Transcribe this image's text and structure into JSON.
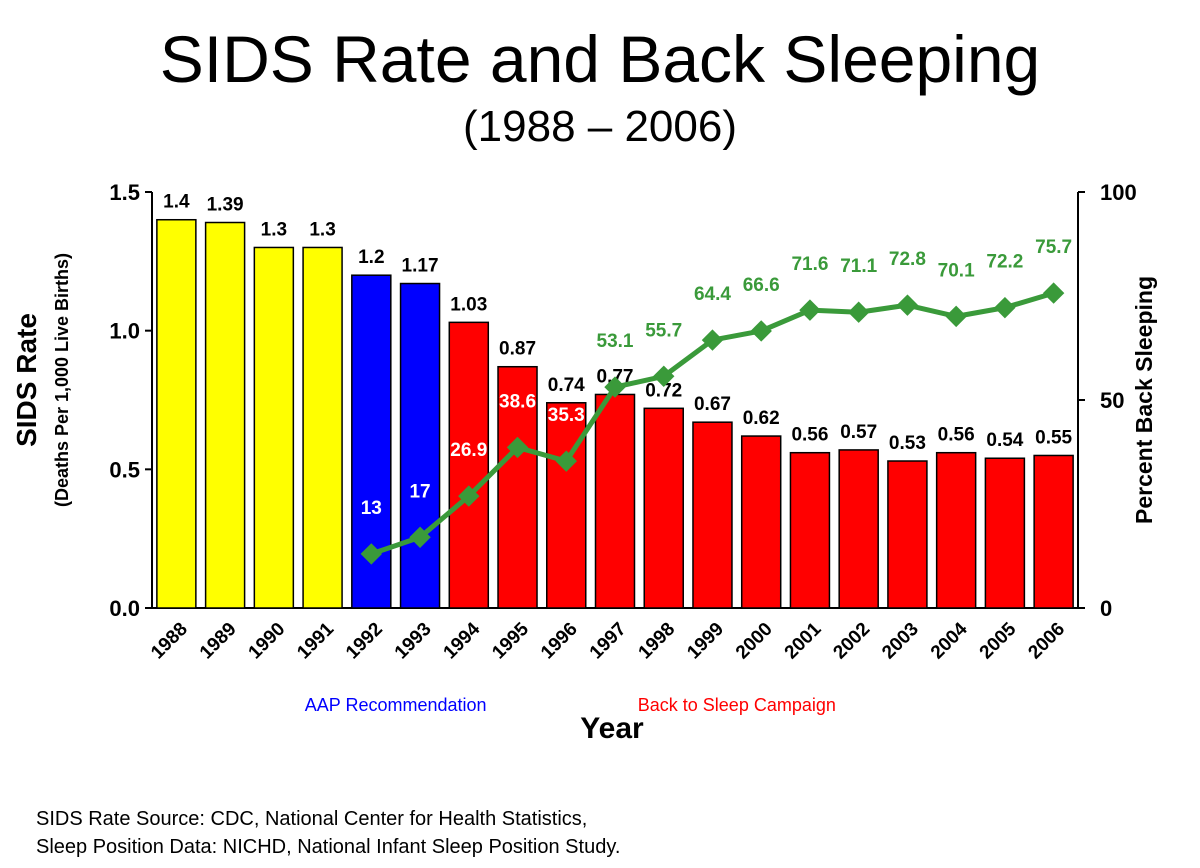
{
  "title": "SIDS Rate and Back Sleeping",
  "subtitle": "(1988 – 2006)",
  "chart_data": {
    "type": "bar",
    "categories": [
      "1988",
      "1989",
      "1990",
      "1991",
      "1992",
      "1993",
      "1994",
      "1995",
      "1996",
      "1997",
      "1998",
      "1999",
      "2000",
      "2001",
      "2002",
      "2003",
      "2004",
      "2005",
      "2006"
    ],
    "bar_values": [
      1.4,
      1.39,
      1.3,
      1.3,
      1.2,
      1.17,
      1.03,
      0.87,
      0.74,
      0.77,
      0.72,
      0.67,
      0.62,
      0.56,
      0.57,
      0.53,
      0.56,
      0.54,
      0.55
    ],
    "bar_value_labels": [
      "1.4",
      "1.39",
      "1.3",
      "1.3",
      "1.2",
      "1.17",
      "1.03",
      "0.87",
      "0.74",
      "0.77",
      "0.72",
      "0.67",
      "0.62",
      "0.56",
      "0.57",
      "0.53",
      "0.56",
      "0.54",
      "0.55"
    ],
    "bar_colors": [
      "#ffff00",
      "#ffff00",
      "#ffff00",
      "#ffff00",
      "#0000ff",
      "#0000ff",
      "#ff0000",
      "#ff0000",
      "#ff0000",
      "#ff0000",
      "#ff0000",
      "#ff0000",
      "#ff0000",
      "#ff0000",
      "#ff0000",
      "#ff0000",
      "#ff0000",
      "#ff0000",
      "#ff0000"
    ],
    "line": {
      "years": [
        "1992",
        "1993",
        "1994",
        "1995",
        "1996",
        "1997",
        "1998",
        "1999",
        "2000",
        "2001",
        "2002",
        "2003",
        "2004",
        "2005",
        "2006"
      ],
      "values": [
        13,
        17,
        26.9,
        38.6,
        35.3,
        53.1,
        55.7,
        64.4,
        66.6,
        71.6,
        71.1,
        72.8,
        70.1,
        72.2,
        75.7
      ],
      "labels": [
        "13",
        "17",
        "26.9",
        "38.6",
        "35.3",
        "53.1",
        "55.7",
        "64.4",
        "66.6",
        "71.6",
        "71.1",
        "72.8",
        "70.1",
        "72.2",
        "75.7"
      ],
      "color": "#3a9a3a",
      "label_color_on_bar": "#ffffff"
    },
    "y_left": {
      "label": "SIDS Rate",
      "sublabel": "(Deaths Per 1,000 Live Births)",
      "lim": [
        0,
        1.5
      ],
      "ticks": [
        "0.0",
        "0.5",
        "1.0",
        "1.5"
      ]
    },
    "y_right": {
      "label": "Percent Back Sleeping",
      "lim": [
        0,
        100
      ],
      "ticks": [
        "0",
        "50",
        "100"
      ]
    },
    "xlabel": "Year",
    "annotations": [
      {
        "text": "AAP Recommendation",
        "color": "#0000ff"
      },
      {
        "text": "Back to Sleep Campaign",
        "color": "#ff0000"
      }
    ]
  },
  "sources": [
    "SIDS Rate Source:  CDC, National Center for Health Statistics,",
    "Sleep Position Data:  NICHD, National Infant Sleep Position Study."
  ]
}
